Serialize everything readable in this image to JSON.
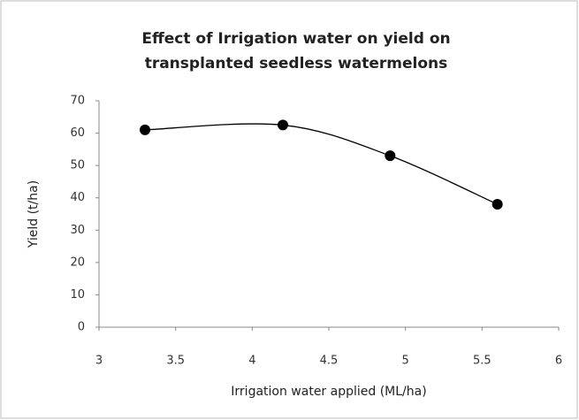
{
  "chart_data": {
    "type": "line",
    "title": [
      "Effect of Irrigation water on yield on",
      "transplanted seedless watermelons"
    ],
    "x_label": "Irrigation water applied (ML/ha)",
    "y_label": "Yield (t/ha)",
    "x": [
      3.3,
      4.2,
      4.9,
      5.6
    ],
    "series": [
      {
        "name": "Yield",
        "color": "#000000",
        "values": [
          61,
          62.5,
          53,
          38
        ]
      }
    ],
    "smooth": true,
    "xlim": [
      3,
      6
    ],
    "xticks": [
      3,
      3.5,
      4,
      4.5,
      5,
      5.5,
      6
    ],
    "ylim": [
      0,
      70
    ],
    "yticks": [
      0,
      10,
      20,
      30,
      40,
      50,
      60,
      70
    ],
    "grid": false
  }
}
